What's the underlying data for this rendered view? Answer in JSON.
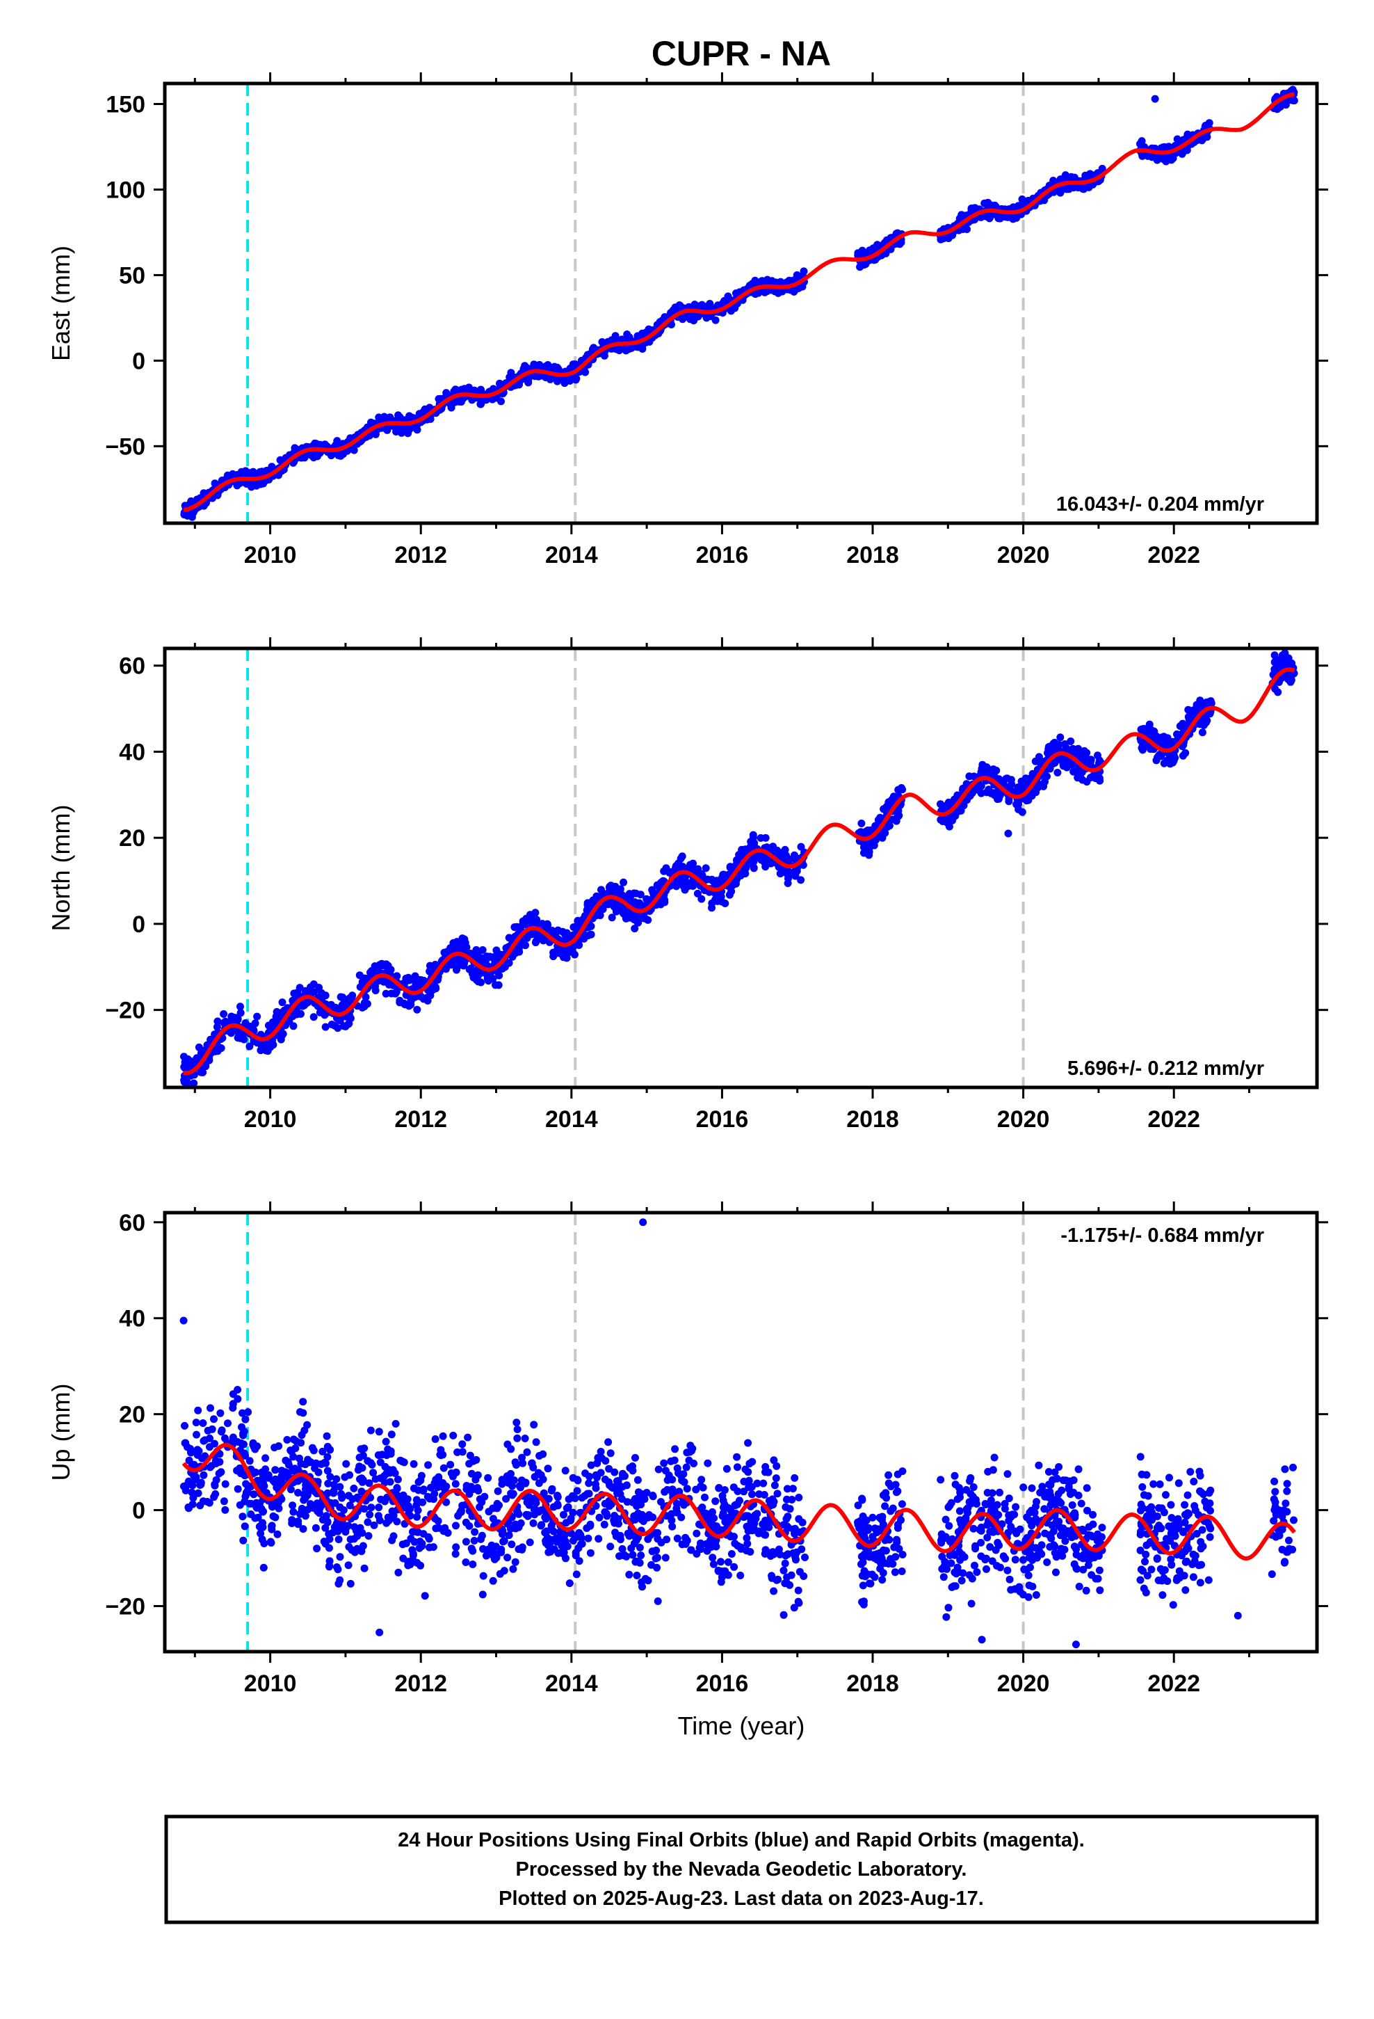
{
  "title": "CUPR - NA",
  "xlabel": "Time (year)",
  "footer": {
    "line1": "24 Hour Positions Using Final Orbits (blue) and Rapid Orbits (magenta).",
    "line2": "Processed by the Nevada Geodetic Laboratory.",
    "line3": "Plotted on 2025-Aug-23. Last data on 2023-Aug-17."
  },
  "colors": {
    "final_orbits": "#0000ff",
    "model": "#ff0000",
    "equipment_change": "#00e5ee",
    "reference_line": "#c8c8c8",
    "axes": "#000000"
  },
  "chart_data": [
    {
      "type": "scatter",
      "component": "east",
      "ylabel": "East (mm)",
      "xlim": [
        2008.6,
        2023.9
      ],
      "ylim": [
        -95,
        162
      ],
      "xticks": [
        2010,
        2012,
        2014,
        2016,
        2018,
        2020,
        2022
      ],
      "yticks": [
        -50,
        0,
        50,
        100,
        150
      ],
      "rate_label": "16.043+/- 0.204 mm/yr",
      "rate_position": "bottom-right",
      "equipment_change_lines": [
        2009.7
      ],
      "reference_lines": [
        2014.05,
        2020.0
      ],
      "data_gaps": [
        [
          2017.1,
          2017.8
        ],
        [
          2018.4,
          2018.9
        ],
        [
          2021.05,
          2021.55
        ],
        [
          2022.5,
          2023.3
        ]
      ],
      "outliers": [
        [
          2021.75,
          153
        ]
      ],
      "model": {
        "rate": 16.043,
        "anchor": [
          [
            2008.85,
            -85
          ],
          [
            2009.7,
            -69
          ],
          [
            2010.5,
            -55
          ],
          [
            2011.5,
            -40
          ],
          [
            2012.5,
            -23
          ],
          [
            2013.5,
            -9
          ],
          [
            2014.05,
            -4
          ],
          [
            2014.7,
            10
          ],
          [
            2015.5,
            26
          ],
          [
            2016.5,
            40
          ],
          [
            2017.5,
            56
          ],
          [
            2018.5,
            72
          ],
          [
            2019.3,
            82
          ],
          [
            2020.0,
            91
          ],
          [
            2020.7,
            104
          ],
          [
            2021.5,
            120
          ],
          [
            2022.2,
            128
          ],
          [
            2022.9,
            138
          ],
          [
            2023.6,
            154
          ]
        ],
        "seasonal_amp": 3.0
      },
      "scatter": {
        "n": 2400,
        "noise": 2.2
      }
    },
    {
      "type": "scatter",
      "component": "north",
      "ylabel": "North (mm)",
      "xlim": [
        2008.6,
        2023.9
      ],
      "ylim": [
        -38,
        64
      ],
      "xticks": [
        2010,
        2012,
        2014,
        2016,
        2018,
        2020,
        2022
      ],
      "yticks": [
        -20,
        0,
        20,
        40,
        60
      ],
      "rate_label": "5.696+/- 0.212 mm/yr",
      "rate_position": "bottom-right",
      "equipment_change_lines": [
        2009.7
      ],
      "reference_lines": [
        2014.05,
        2020.0
      ],
      "data_gaps": [
        [
          2017.1,
          2017.8
        ],
        [
          2018.4,
          2018.9
        ],
        [
          2021.05,
          2021.55
        ],
        [
          2022.5,
          2023.3
        ]
      ],
      "outliers": [
        [
          2019.8,
          21
        ],
        [
          2017.95,
          16
        ]
      ],
      "model": {
        "rate": 5.696,
        "anchor": [
          [
            2008.85,
            -32
          ],
          [
            2009.7,
            -25
          ],
          [
            2010.5,
            -20
          ],
          [
            2011.5,
            -15
          ],
          [
            2012.5,
            -10
          ],
          [
            2013.5,
            -4
          ],
          [
            2014.05,
            -1
          ],
          [
            2014.7,
            5
          ],
          [
            2015.5,
            9
          ],
          [
            2016.5,
            14
          ],
          [
            2017.5,
            20
          ],
          [
            2018.5,
            27
          ],
          [
            2019.3,
            30
          ],
          [
            2020.0,
            33
          ],
          [
            2020.7,
            38
          ],
          [
            2021.5,
            41
          ],
          [
            2022.2,
            45
          ],
          [
            2022.9,
            50
          ],
          [
            2023.6,
            57
          ]
        ],
        "seasonal_amp": 3.2
      },
      "scatter": {
        "n": 2400,
        "noise": 1.8
      }
    },
    {
      "type": "scatter",
      "component": "up",
      "ylabel": "Up (mm)",
      "xlim": [
        2008.6,
        2023.9
      ],
      "ylim": [
        -29.5,
        62
      ],
      "xticks": [
        2010,
        2012,
        2014,
        2016,
        2018,
        2020,
        2022
      ],
      "yticks": [
        -20,
        0,
        20,
        40,
        60
      ],
      "rate_label": "-1.175+/- 0.684 mm/yr",
      "rate_position": "top-right",
      "equipment_change_lines": [
        2009.7
      ],
      "reference_lines": [
        2014.05,
        2020.0
      ],
      "data_gaps": [
        [
          2017.1,
          2017.8
        ],
        [
          2018.4,
          2018.9
        ],
        [
          2021.05,
          2021.55
        ],
        [
          2022.5,
          2023.3
        ]
      ],
      "outliers": [
        [
          2008.85,
          39.5
        ],
        [
          2014.95,
          60
        ],
        [
          2011.45,
          -25.5
        ],
        [
          2019.45,
          -27
        ],
        [
          2020.7,
          -28
        ],
        [
          2022.85,
          -22
        ]
      ],
      "model": {
        "rate": -1.175,
        "anchor": [
          [
            2008.85,
            13
          ],
          [
            2009.7,
            8
          ],
          [
            2010.5,
            3
          ],
          [
            2011.5,
            1
          ],
          [
            2012.5,
            0
          ],
          [
            2013.5,
            0
          ],
          [
            2014.05,
            0
          ],
          [
            2014.7,
            -1
          ],
          [
            2015.5,
            -1
          ],
          [
            2016.5,
            -2
          ],
          [
            2017.5,
            -3
          ],
          [
            2018.5,
            -4
          ],
          [
            2019.3,
            -5
          ],
          [
            2020.0,
            -4
          ],
          [
            2020.7,
            -4
          ],
          [
            2021.5,
            -5
          ],
          [
            2022.2,
            -5
          ],
          [
            2022.9,
            -6
          ],
          [
            2023.6,
            -7
          ]
        ],
        "seasonal_amp": 4.0
      },
      "scatter": {
        "n": 2400,
        "noise": 6.0
      }
    }
  ]
}
